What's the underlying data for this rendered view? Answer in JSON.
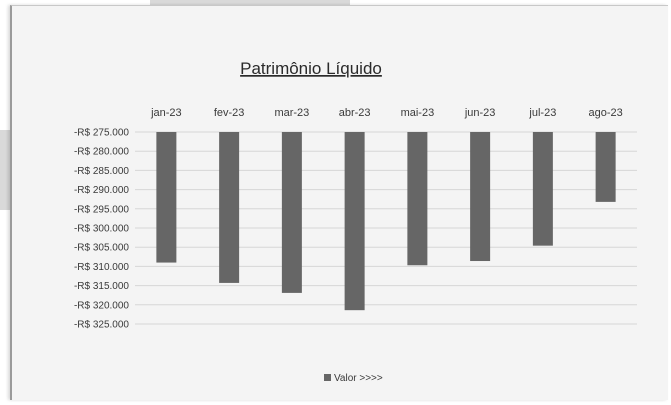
{
  "chart_data": {
    "type": "bar",
    "title": "Patrimônio Líquido",
    "categories": [
      "jan-23",
      "fev-23",
      "mar-23",
      "abr-23",
      "mai-23",
      "jun-23",
      "jul-23",
      "ago-23"
    ],
    "series": [
      {
        "name": "Valor >>>>",
        "values": [
          -309000,
          -314300,
          -316900,
          -321400,
          -309700,
          -308600,
          -304600,
          -293200
        ]
      }
    ],
    "y_ticks": [
      "-R$ 275.000",
      "-R$ 280.000",
      "-R$ 285.000",
      "-R$ 290.000",
      "-R$ 295.000",
      "-R$ 300.000",
      "-R$ 305.000",
      "-R$ 310.000",
      "-R$ 315.000",
      "-R$ 320.000",
      "-R$ 325.000"
    ],
    "ylim": [
      -275000,
      -325000
    ],
    "y_reversed": true,
    "grid": true,
    "legend_position": "bottom",
    "colors": {
      "bar": "#666666",
      "grid": "#d6d6d6",
      "text": "#3a3a3a"
    }
  }
}
